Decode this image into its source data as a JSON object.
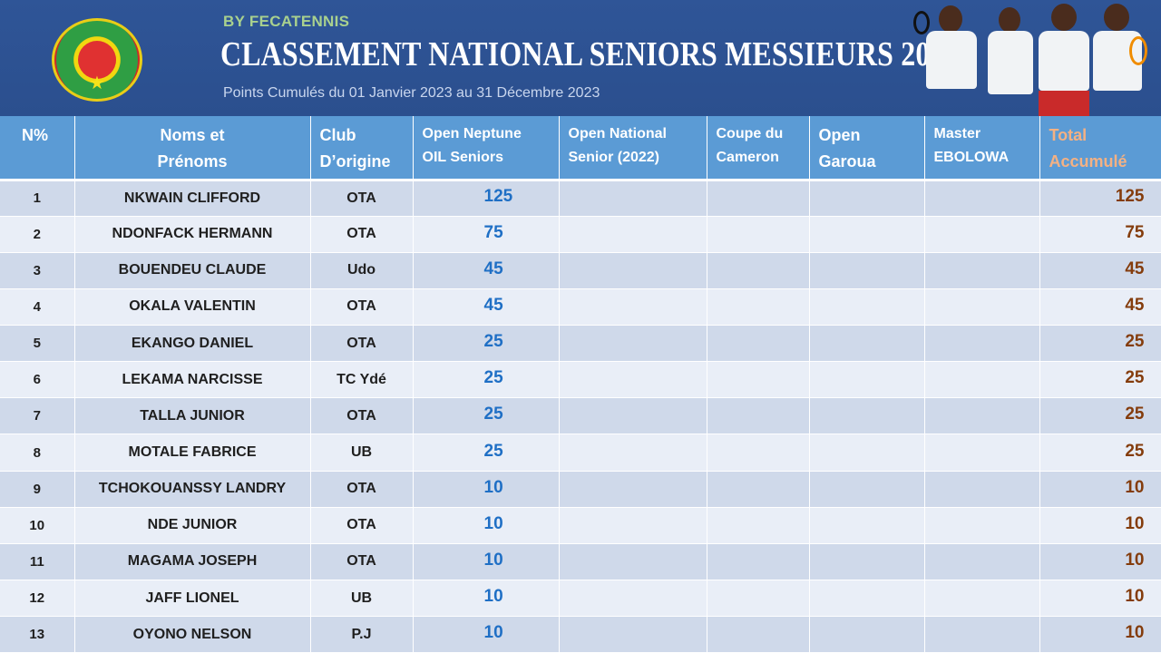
{
  "header": {
    "byline": "BY FECATENNIS",
    "title": "CLASSEMENT NATIONAL SENIORS MESSIEURS 2023",
    "subtitle": "Points Cumulés du 01 Janvier 2023 au 31 Décembre 2023",
    "logo_icon": "federation-logo-icon",
    "photo": "tennis-players-photo"
  },
  "colors": {
    "banner": "#2f5597",
    "header_row": "#5b9bd5",
    "row_odd": "#cfd9ea",
    "row_even": "#e9eef7",
    "points_blue": "#1f6fc5",
    "total_brown": "#843c0c",
    "total_header": "#f4b183"
  },
  "table": {
    "columns": [
      {
        "line1": "N%",
        "line2": ""
      },
      {
        "line1": "Noms et",
        "line2": "Prénoms"
      },
      {
        "line1": "Club",
        "line2": "D’origine"
      },
      {
        "line1": "Open Neptune",
        "line2": "OIL Seniors"
      },
      {
        "line1": "Open National",
        "line2": "Senior (2022)"
      },
      {
        "line1": "Coupe du",
        "line2": "Cameron"
      },
      {
        "line1": "Open",
        "line2": "Garoua"
      },
      {
        "line1": "Master",
        "line2": "EBOLOWA"
      },
      {
        "line1": "Total",
        "line2": "Accumulé"
      }
    ],
    "rows": [
      {
        "rank": "1",
        "name": "NKWAIN CLIFFORD",
        "club": "OTA",
        "neptune": "125",
        "national": "",
        "coupe": "",
        "garoua": "",
        "ebolowa": "",
        "total": "125"
      },
      {
        "rank": "2",
        "name": "NDONFACK HERMANN",
        "club": "OTA",
        "neptune": "75",
        "national": "",
        "coupe": "",
        "garoua": "",
        "ebolowa": "",
        "total": "75"
      },
      {
        "rank": "3",
        "name": "BOUENDEU CLAUDE",
        "club": "Udo",
        "neptune": "45",
        "national": "",
        "coupe": "",
        "garoua": "",
        "ebolowa": "",
        "total": "45"
      },
      {
        "rank": "4",
        "name": "OKALA VALENTIN",
        "club": "OTA",
        "neptune": "45",
        "national": "",
        "coupe": "",
        "garoua": "",
        "ebolowa": "",
        "total": "45"
      },
      {
        "rank": "5",
        "name": "EKANGO DANIEL",
        "club": "OTA",
        "neptune": "25",
        "national": "",
        "coupe": "",
        "garoua": "",
        "ebolowa": "",
        "total": "25"
      },
      {
        "rank": "6",
        "name": "LEKAMA NARCISSE",
        "club": "TC Ydé",
        "neptune": "25",
        "national": "",
        "coupe": "",
        "garoua": "",
        "ebolowa": "",
        "total": "25"
      },
      {
        "rank": "7",
        "name": "TALLA JUNIOR",
        "club": "OTA",
        "neptune": "25",
        "national": "",
        "coupe": "",
        "garoua": "",
        "ebolowa": "",
        "total": "25"
      },
      {
        "rank": "8",
        "name": "MOTALE FABRICE",
        "club": "UB",
        "neptune": "25",
        "national": "",
        "coupe": "",
        "garoua": "",
        "ebolowa": "",
        "total": "25"
      },
      {
        "rank": "9",
        "name": "TCHOKOUANSSY LANDRY",
        "club": "OTA",
        "neptune": "10",
        "national": "",
        "coupe": "",
        "garoua": "",
        "ebolowa": "",
        "total": "10"
      },
      {
        "rank": "10",
        "name": "NDE JUNIOR",
        "club": "OTA",
        "neptune": "10",
        "national": "",
        "coupe": "",
        "garoua": "",
        "ebolowa": "",
        "total": "10"
      },
      {
        "rank": "11",
        "name": "MAGAMA JOSEPH",
        "club": "OTA",
        "neptune": "10",
        "national": "",
        "coupe": "",
        "garoua": "",
        "ebolowa": "",
        "total": "10"
      },
      {
        "rank": "12",
        "name": "JAFF LIONEL",
        "club": "UB",
        "neptune": "10",
        "national": "",
        "coupe": "",
        "garoua": "",
        "ebolowa": "",
        "total": "10"
      },
      {
        "rank": "13",
        "name": "OYONO NELSON",
        "club": "P.J",
        "neptune": "10",
        "national": "",
        "coupe": "",
        "garoua": "",
        "ebolowa": "",
        "total": "10"
      }
    ]
  }
}
